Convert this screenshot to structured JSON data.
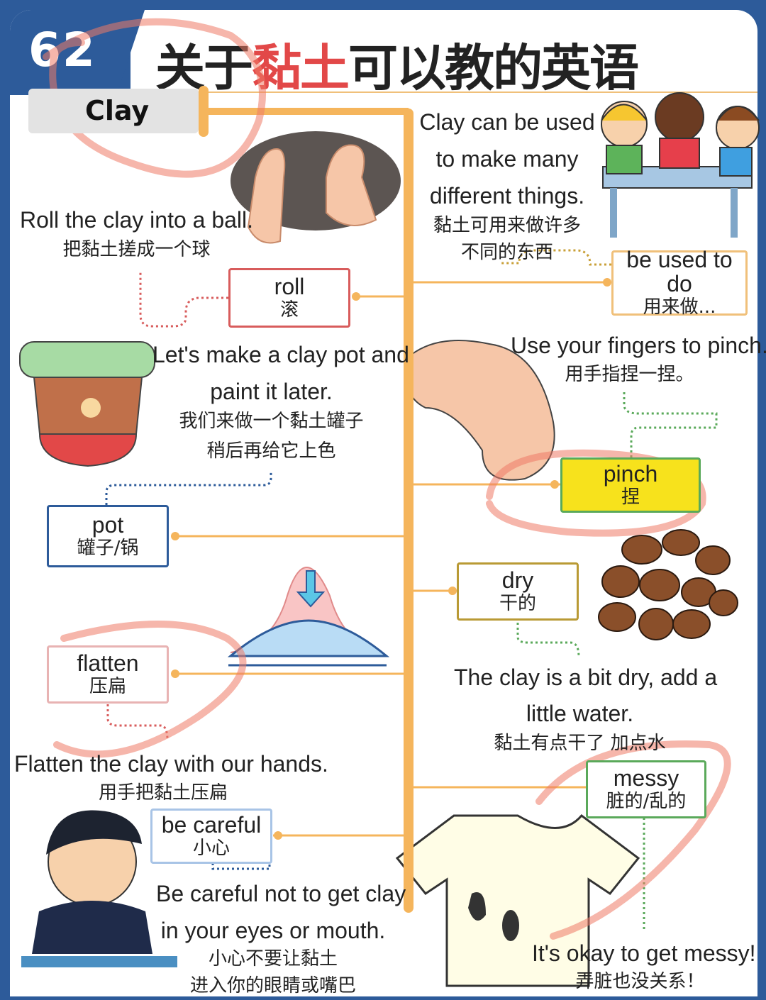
{
  "header": {
    "number": "62",
    "title_pre": "关于",
    "title_hl": "黏土",
    "title_post": "可以教的英语"
  },
  "topic": "Clay",
  "notes": {
    "intro_en1": "Clay can be used",
    "intro_en2": "to make many",
    "intro_en3": "different things.",
    "intro_cn1": "黏土可用来做许多",
    "intro_cn2": "不同的东西",
    "roll_en": "Roll the clay into a ball.",
    "roll_cn": "把黏土搓成一个球",
    "pot_en1": "Let's make a clay pot and",
    "pot_en2": "paint it later.",
    "pot_cn1": "我们来做一个黏土罐子",
    "pot_cn2": "稍后再给它上色",
    "pinch_en": "Use your fingers to pinch.",
    "pinch_cn": "用手指捏一捏。",
    "dry_en1": "The clay is a bit dry, add a",
    "dry_en2": "little water.",
    "dry_cn": "黏土有点干了 加点水",
    "flatten_en": "Flatten the clay with our hands.",
    "flatten_cn": "用手把黏土压扁",
    "careful_en1": "Be careful not to get clay",
    "careful_en2": "in your eyes or mouth.",
    "careful_cn1": "小心不要让黏土",
    "careful_cn2": "进入你的眼睛或嘴巴",
    "messy_en": "It's okay to get messy!",
    "messy_cn": "弄脏也没关系！"
  },
  "words": {
    "roll": {
      "en": "roll",
      "cn": "滚"
    },
    "used": {
      "en": "be used to do",
      "cn": "用来做..."
    },
    "pinch": {
      "en": "pinch",
      "cn": "捏"
    },
    "pot": {
      "en": "pot",
      "cn": "罐子/锅"
    },
    "dry": {
      "en": "dry",
      "cn": "干的"
    },
    "flatten": {
      "en": "flatten",
      "cn": "压扁"
    },
    "messy": {
      "en": "messy",
      "cn": "脏的/乱的"
    },
    "careful": {
      "en": "be careful",
      "cn": "小心"
    }
  },
  "colors": {
    "accent": "#f5b55c",
    "header": "#2d5b9a",
    "highlight": "#e24848",
    "pinch_box": "#f7e21c"
  }
}
